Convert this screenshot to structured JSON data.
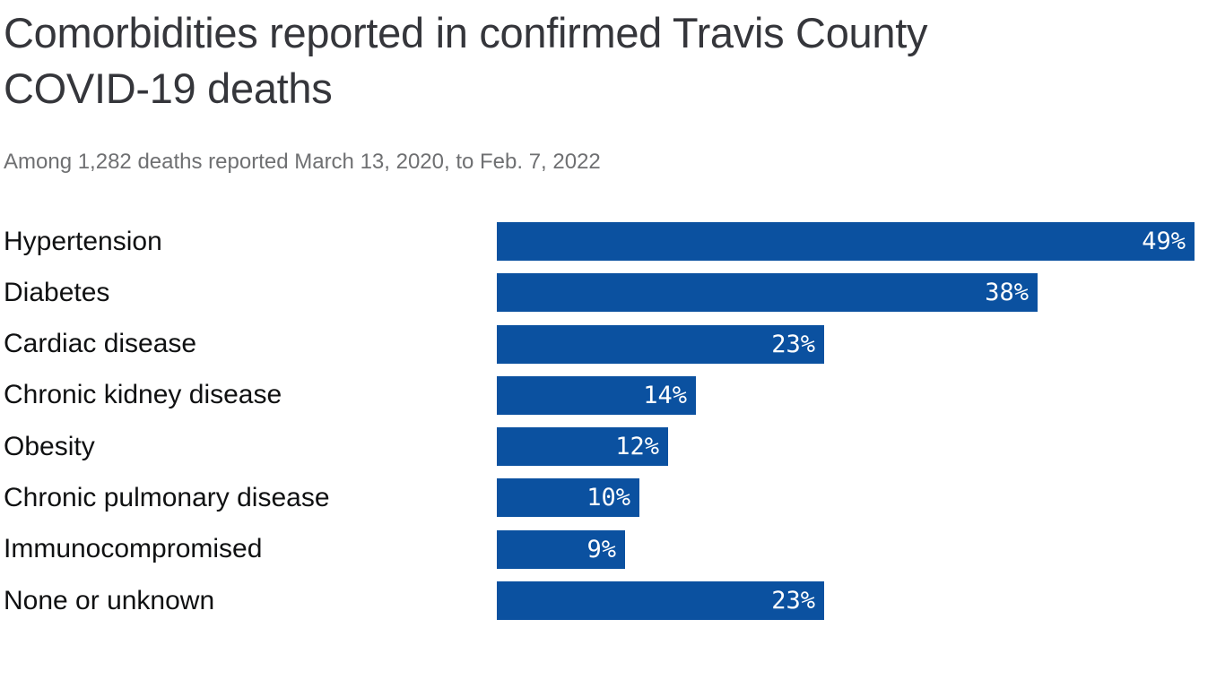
{
  "header": {
    "title_lines": [
      "Comorbidities reported in confirmed Travis County",
      "COVID-19 deaths"
    ],
    "subtitle": "Among 1,282 deaths reported March 13, 2020, to Feb. 7, 2022"
  },
  "chart_data": {
    "type": "bar",
    "orientation": "horizontal",
    "title": "Comorbidities reported in confirmed Travis County COVID-19 deaths",
    "subtitle": "Among 1,282 deaths reported March 13, 2020, to Feb. 7, 2022",
    "categories": [
      "Hypertension",
      "Diabetes",
      "Cardiac disease",
      "Chronic kidney disease",
      "Obesity",
      "Chronic pulmonary disease",
      "Immunocompromised",
      "None or unknown"
    ],
    "values": [
      49,
      38,
      23,
      14,
      12,
      10,
      9,
      23
    ],
    "value_labels": [
      "49%",
      "38%",
      "23%",
      "14%",
      "12%",
      "10%",
      "9%",
      "23%"
    ],
    "unit": "%",
    "xlim": [
      0,
      51.2
    ],
    "bar_color": "#0b51a0",
    "value_label_color": "#ffffff",
    "category_label_color": "#101112",
    "title_color": "#35363b",
    "subtitle_color": "#6f7072",
    "grid": false,
    "legend": false,
    "value_labels_position": "inside-end"
  }
}
